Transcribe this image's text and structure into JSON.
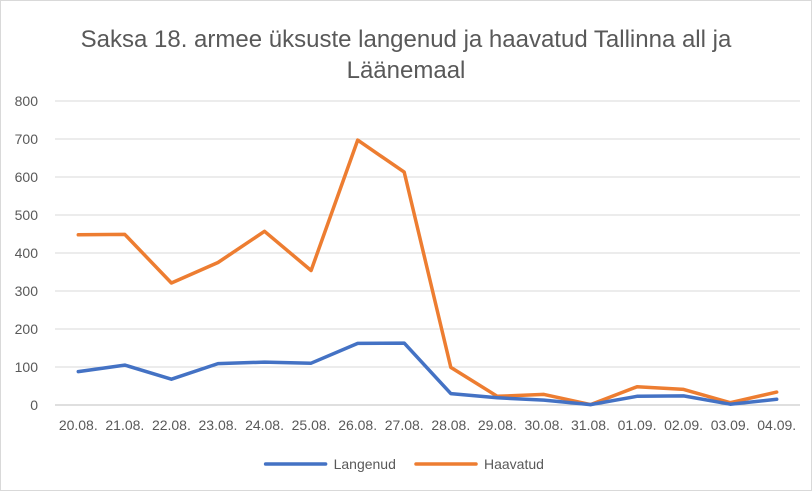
{
  "chart_data": {
    "type": "line",
    "title_line1": "Saksa 18. armee üksuste langenud ja haavatud Tallinna all ja",
    "title_line2": "Läänemaal",
    "categories": [
      "20.08.",
      "21.08.",
      "22.08.",
      "23.08.",
      "24.08.",
      "25.08.",
      "26.08.",
      "27.08.",
      "28.08.",
      "29.08.",
      "30.08.",
      "31.08.",
      "01.09.",
      "02.09.",
      "03.09.",
      "04.09."
    ],
    "series": [
      {
        "name": "Langenud",
        "color": "#4472c4",
        "values": [
          88,
          105,
          68,
          109,
          113,
          110,
          162,
          163,
          30,
          19,
          13,
          1,
          23,
          24,
          2,
          15
        ]
      },
      {
        "name": "Haavatud",
        "color": "#ed7d31",
        "values": [
          448,
          449,
          321,
          375,
          457,
          354,
          697,
          613,
          99,
          23,
          28,
          1,
          48,
          41,
          6,
          34
        ]
      }
    ],
    "ylim": [
      0,
      800
    ],
    "yticks": [
      0,
      100,
      200,
      300,
      400,
      500,
      600,
      700,
      800
    ],
    "grid": true,
    "legend_position": "bottom"
  }
}
